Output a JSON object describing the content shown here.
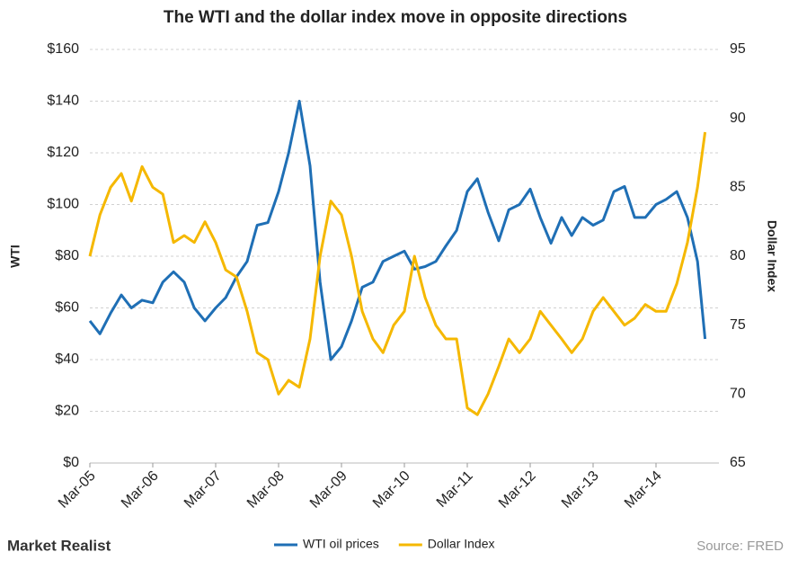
{
  "chart_data": {
    "type": "line",
    "title": "The WTI and the dollar index move in opposite directions",
    "y_label": "WTI",
    "y2_label": "Dollar Index",
    "x": [
      2005.17,
      2005.33,
      2005.5,
      2005.67,
      2005.83,
      2006.0,
      2006.17,
      2006.33,
      2006.5,
      2006.67,
      2006.83,
      2007.0,
      2007.17,
      2007.33,
      2007.5,
      2007.67,
      2007.83,
      2008.0,
      2008.17,
      2008.33,
      2008.5,
      2008.67,
      2008.83,
      2009.0,
      2009.17,
      2009.33,
      2009.5,
      2009.67,
      2009.83,
      2010.0,
      2010.17,
      2010.33,
      2010.5,
      2010.67,
      2010.83,
      2011.0,
      2011.17,
      2011.33,
      2011.5,
      2011.67,
      2011.83,
      2012.0,
      2012.17,
      2012.33,
      2012.5,
      2012.67,
      2012.83,
      2013.0,
      2013.17,
      2013.33,
      2013.5,
      2013.67,
      2013.83,
      2014.0,
      2014.17,
      2014.33,
      2014.5,
      2014.67,
      2014.83,
      2014.95
    ],
    "series": [
      {
        "name": "WTI oil prices",
        "color": "#1f6fb5",
        "axis": "y",
        "values": [
          55,
          50,
          58,
          65,
          60,
          63,
          62,
          70,
          74,
          70,
          60,
          55,
          60,
          64,
          72,
          78,
          92,
          93,
          105,
          120,
          140,
          115,
          70,
          40,
          45,
          55,
          68,
          70,
          78,
          80,
          82,
          75,
          76,
          78,
          84,
          90,
          105,
          110,
          97,
          86,
          98,
          100,
          106,
          95,
          85,
          95,
          88,
          95,
          92,
          94,
          105,
          107,
          95,
          95,
          100,
          102,
          105,
          95,
          78,
          48
        ]
      },
      {
        "name": "Dollar Index",
        "color": "#f5b800",
        "axis": "y2",
        "values": [
          80,
          83,
          85,
          86,
          84,
          86.5,
          85,
          84.5,
          81,
          81.5,
          81,
          82.5,
          81,
          79,
          78.5,
          76,
          73,
          72.5,
          70,
          71,
          70.5,
          74,
          80,
          84,
          83,
          80,
          76,
          74,
          73,
          75,
          76,
          80,
          77,
          75,
          74,
          74,
          69,
          68.5,
          70,
          72,
          74,
          73,
          74,
          76,
          75,
          74,
          73,
          74,
          76,
          77,
          76,
          75,
          75.5,
          76.5,
          76,
          76,
          78,
          81,
          85,
          89
        ]
      }
    ],
    "xlim": [
      2005.17,
      2015.17
    ],
    "xticks": [
      {
        "value": 2005.17,
        "label": "Mar-05"
      },
      {
        "value": 2006.17,
        "label": "Mar-06"
      },
      {
        "value": 2007.17,
        "label": "Mar-07"
      },
      {
        "value": 2008.17,
        "label": "Mar-08"
      },
      {
        "value": 2009.17,
        "label": "Mar-09"
      },
      {
        "value": 2010.17,
        "label": "Mar-10"
      },
      {
        "value": 2011.17,
        "label": "Mar-11"
      },
      {
        "value": 2012.17,
        "label": "Mar-12"
      },
      {
        "value": 2013.17,
        "label": "Mar-13"
      },
      {
        "value": 2014.17,
        "label": "Mar-14"
      }
    ],
    "ylim": [
      0,
      160
    ],
    "yticks": [
      {
        "value": 0,
        "label": "$0"
      },
      {
        "value": 20,
        "label": "$20"
      },
      {
        "value": 40,
        "label": "$40"
      },
      {
        "value": 60,
        "label": "$60"
      },
      {
        "value": 80,
        "label": "$80"
      },
      {
        "value": 100,
        "label": "$100"
      },
      {
        "value": 120,
        "label": "$120"
      },
      {
        "value": 140,
        "label": "$140"
      },
      {
        "value": 160,
        "label": "$160"
      }
    ],
    "y2lim": [
      65,
      95
    ],
    "y2ticks": [
      65,
      70,
      75,
      80,
      85,
      90,
      95
    ],
    "grid": true,
    "legend": "bottom",
    "brand": "Market Realist",
    "source": "Source: FRED"
  }
}
